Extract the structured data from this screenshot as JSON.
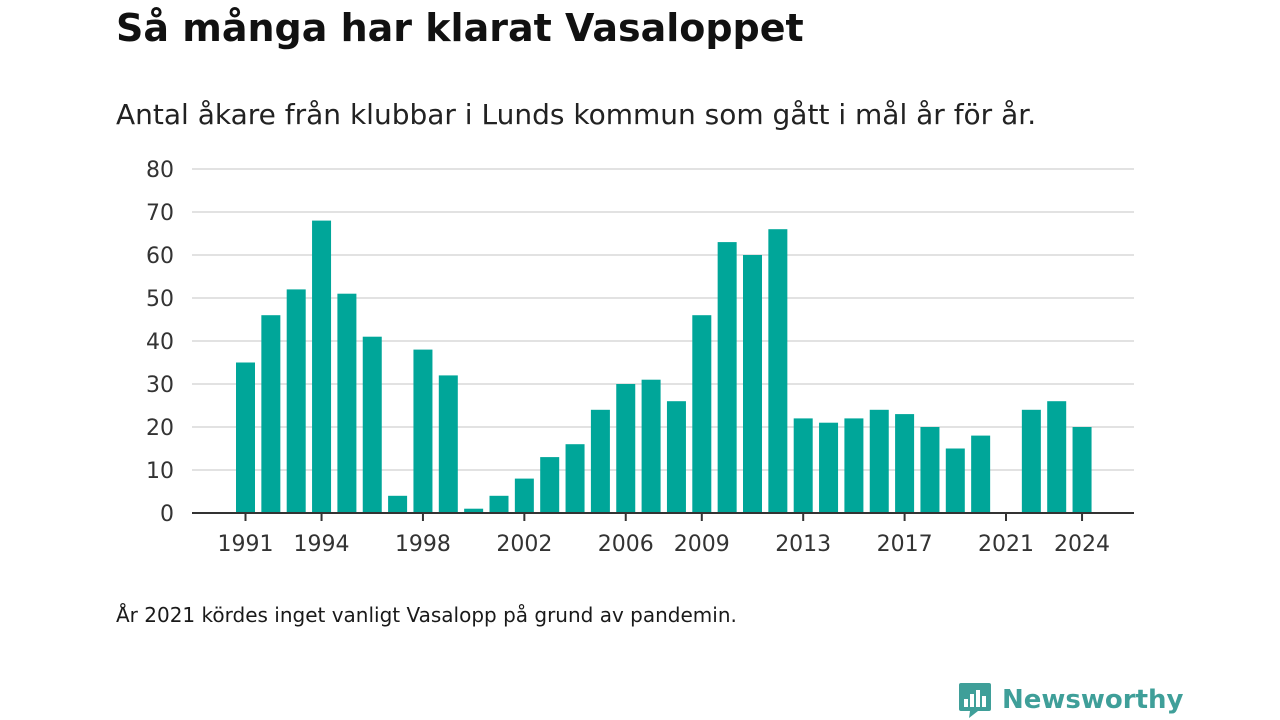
{
  "header": {
    "title": "Så många har klarat Vasaloppet",
    "subtitle": "Antal åkare från klubbar i Lunds kommun som gått i mål år för år."
  },
  "footnote": "År 2021 kördes inget vanligt Vasalopp på grund av pandemin.",
  "brand": {
    "name": "Newsworthy",
    "color": "#3f9f99",
    "icon": "newsworthy-logo-icon"
  },
  "colors": {
    "bar": "#00a699",
    "grid": "#d9d9d9",
    "axis": "#333333"
  },
  "chart_data": {
    "type": "bar",
    "title": "Så många har klarat Vasaloppet",
    "subtitle": "Antal åkare från klubbar i Lunds kommun som gått i mål år för år.",
    "xlabel": "",
    "ylabel": "",
    "ylim": [
      0,
      80
    ],
    "yticks": [
      0,
      10,
      20,
      30,
      40,
      50,
      60,
      70,
      80
    ],
    "grid": true,
    "legend": "none",
    "categories": [
      1991,
      1992,
      1993,
      1994,
      1995,
      1996,
      1997,
      1998,
      1999,
      2000,
      2001,
      2002,
      2003,
      2004,
      2005,
      2006,
      2007,
      2008,
      2009,
      2010,
      2011,
      2012,
      2013,
      2014,
      2015,
      2016,
      2017,
      2018,
      2019,
      2020,
      2021,
      2022,
      2023,
      2024
    ],
    "values": [
      35,
      46,
      52,
      68,
      51,
      41,
      4,
      38,
      32,
      1,
      4,
      8,
      13,
      16,
      24,
      30,
      31,
      26,
      46,
      63,
      60,
      66,
      22,
      21,
      22,
      24,
      23,
      20,
      15,
      18,
      0,
      24,
      26,
      20
    ],
    "xtick_labels": [
      1991,
      1994,
      1998,
      2002,
      2006,
      2009,
      2013,
      2017,
      2021,
      2024
    ]
  }
}
